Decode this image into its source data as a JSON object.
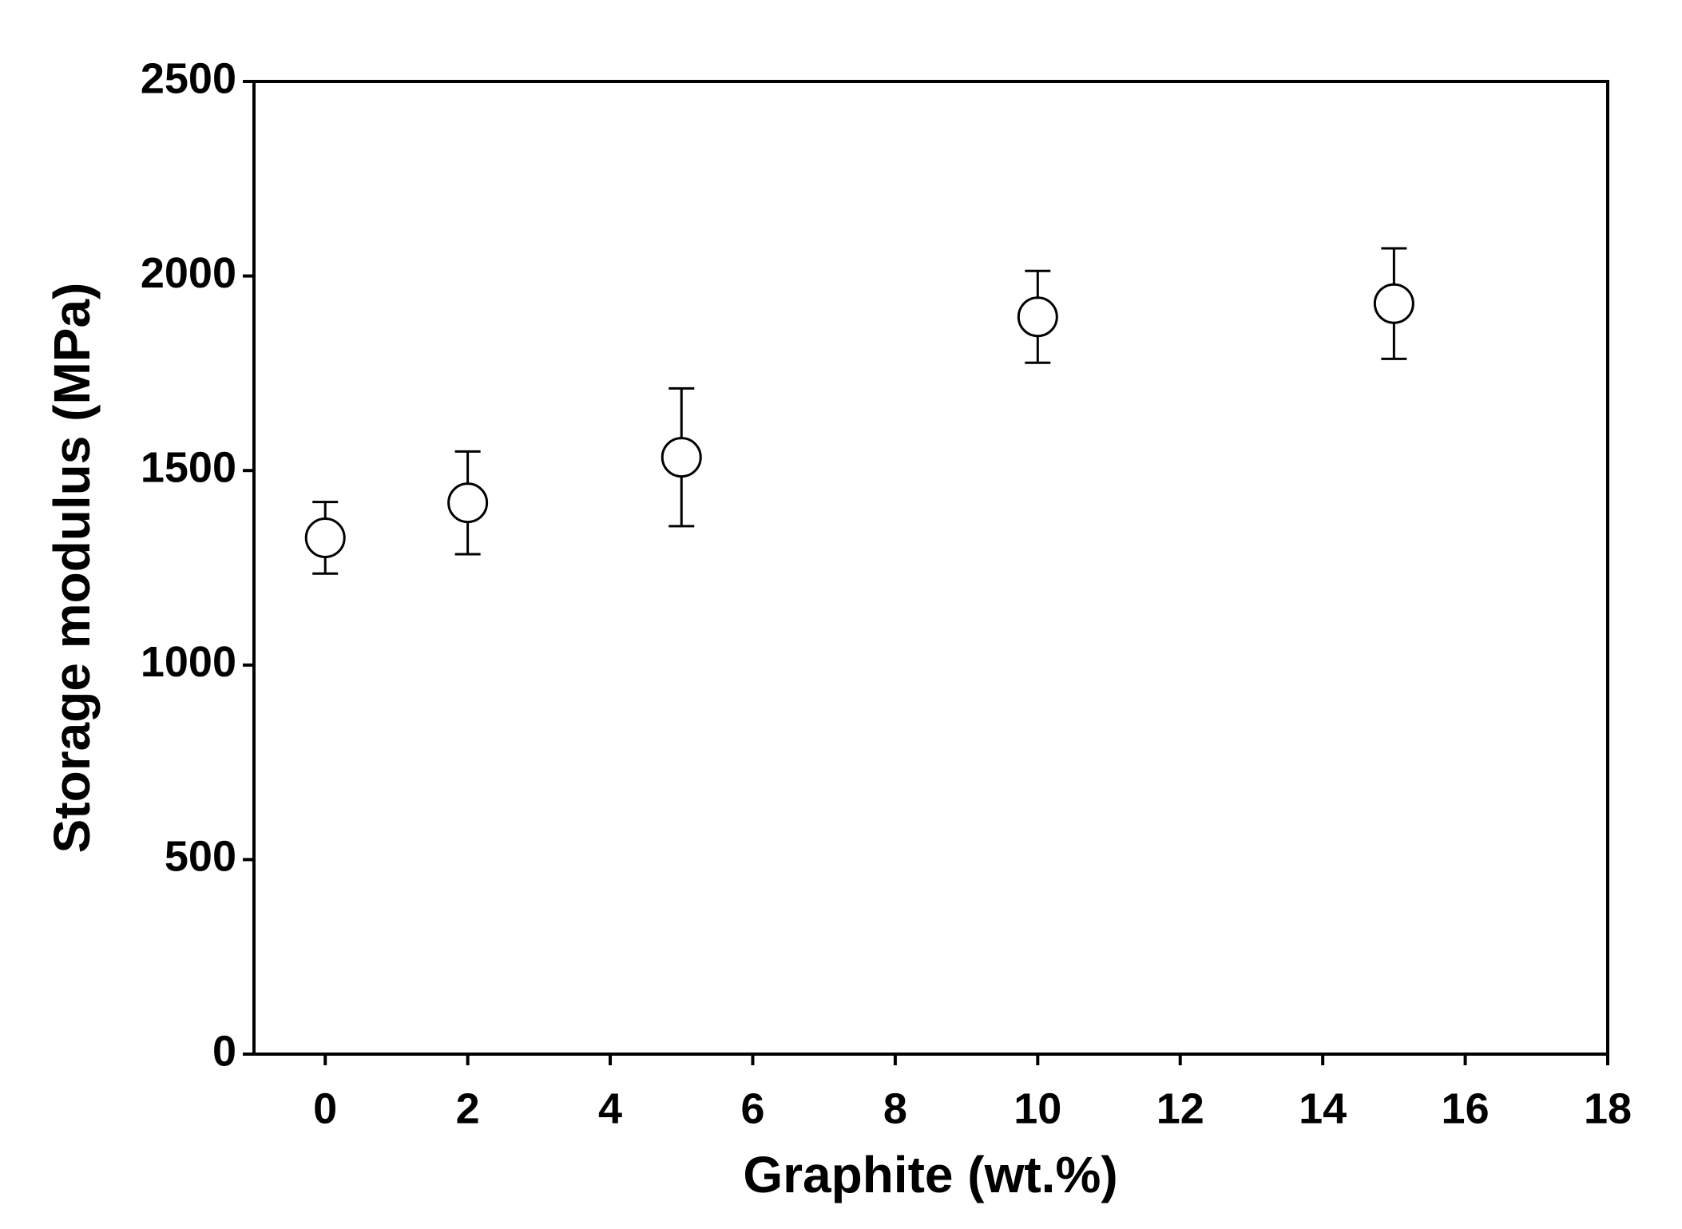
{
  "chart_data": {
    "type": "scatter",
    "x_label": "Graphite (wt.%)",
    "y_label": "Storage modulus (MPa)",
    "x": [
      0,
      2,
      5,
      10,
      15
    ],
    "values": [
      1327,
      1417,
      1534,
      1895,
      1929
    ],
    "errors": [
      92,
      132,
      177,
      118,
      142
    ],
    "color": "#000000",
    "xlim": [
      -1,
      18
    ],
    "xticks": [
      0,
      2,
      4,
      6,
      8,
      10,
      12,
      14,
      16,
      18
    ],
    "ylim": [
      0,
      2500
    ],
    "yticks": [
      0,
      500,
      1000,
      1500,
      2000,
      2500
    ],
    "grid": false
  }
}
